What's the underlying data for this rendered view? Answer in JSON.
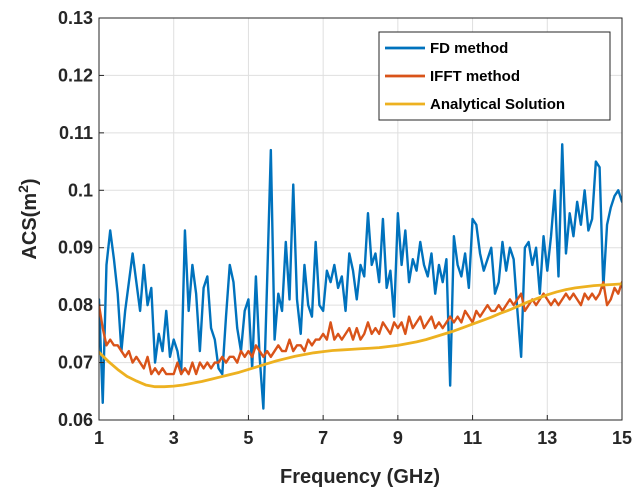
{
  "chart_data": {
    "type": "line",
    "title": "",
    "xlabel": "Frequency (GHz)",
    "ylabel_main": "ACS(m",
    "ylabel_sup": "2",
    "ylabel_close": ")",
    "xlim": [
      1,
      15
    ],
    "ylim": [
      0.06,
      0.13
    ],
    "xticks": [
      1,
      3,
      5,
      7,
      9,
      11,
      13,
      15
    ],
    "xtick_labels": [
      "1",
      "3",
      "5",
      "7",
      "9",
      "11",
      "13",
      "15"
    ],
    "yticks": [
      0.06,
      0.07,
      0.08,
      0.09,
      0.1,
      0.11,
      0.12,
      0.13
    ],
    "ytick_labels": [
      "0.06",
      "0.07",
      "0.08",
      "0.09",
      "0.1",
      "0.11",
      "0.12",
      "0.13"
    ],
    "grid": true,
    "legend_position": "top-right",
    "series": [
      {
        "name": "FD method",
        "color": "#0072BD",
        "x": [
          1.0,
          1.1,
          1.2,
          1.3,
          1.4,
          1.5,
          1.6,
          1.7,
          1.8,
          1.9,
          2.0,
          2.1,
          2.2,
          2.3,
          2.4,
          2.5,
          2.6,
          2.7,
          2.8,
          2.9,
          3.0,
          3.1,
          3.2,
          3.3,
          3.4,
          3.5,
          3.6,
          3.7,
          3.8,
          3.9,
          4.0,
          4.1,
          4.2,
          4.3,
          4.4,
          4.5,
          4.6,
          4.7,
          4.8,
          4.9,
          5.0,
          5.1,
          5.2,
          5.3,
          5.4,
          5.5,
          5.6,
          5.7,
          5.8,
          5.9,
          6.0,
          6.1,
          6.2,
          6.3,
          6.4,
          6.5,
          6.6,
          6.7,
          6.8,
          6.9,
          7.0,
          7.1,
          7.2,
          7.3,
          7.4,
          7.5,
          7.6,
          7.7,
          7.8,
          7.9,
          8.0,
          8.1,
          8.2,
          8.3,
          8.4,
          8.5,
          8.6,
          8.7,
          8.8,
          8.9,
          9.0,
          9.1,
          9.2,
          9.3,
          9.4,
          9.5,
          9.6,
          9.7,
          9.8,
          9.9,
          10.0,
          10.1,
          10.2,
          10.3,
          10.4,
          10.5,
          10.6,
          10.7,
          10.8,
          10.9,
          11.0,
          11.1,
          11.2,
          11.3,
          11.4,
          11.5,
          11.6,
          11.7,
          11.8,
          11.9,
          12.0,
          12.1,
          12.2,
          12.3,
          12.4,
          12.5,
          12.6,
          12.7,
          12.8,
          12.9,
          13.0,
          13.1,
          13.2,
          13.3,
          13.4,
          13.5,
          13.6,
          13.7,
          13.8,
          13.9,
          14.0,
          14.1,
          14.2,
          14.3,
          14.4,
          14.5,
          14.6,
          14.7,
          14.8,
          14.9,
          15.0
        ],
        "y": [
          0.081,
          0.063,
          0.087,
          0.093,
          0.088,
          0.082,
          0.072,
          0.079,
          0.084,
          0.089,
          0.084,
          0.079,
          0.087,
          0.08,
          0.083,
          0.07,
          0.075,
          0.072,
          0.079,
          0.071,
          0.074,
          0.072,
          0.068,
          0.093,
          0.079,
          0.087,
          0.082,
          0.072,
          0.083,
          0.085,
          0.076,
          0.074,
          0.069,
          0.068,
          0.078,
          0.087,
          0.084,
          0.076,
          0.072,
          0.079,
          0.081,
          0.069,
          0.085,
          0.071,
          0.062,
          0.084,
          0.107,
          0.074,
          0.082,
          0.079,
          0.091,
          0.081,
          0.101,
          0.081,
          0.075,
          0.087,
          0.08,
          0.078,
          0.091,
          0.08,
          0.079,
          0.086,
          0.084,
          0.087,
          0.083,
          0.085,
          0.079,
          0.089,
          0.086,
          0.081,
          0.087,
          0.085,
          0.096,
          0.087,
          0.089,
          0.084,
          0.095,
          0.083,
          0.086,
          0.078,
          0.096,
          0.087,
          0.093,
          0.084,
          0.088,
          0.086,
          0.091,
          0.087,
          0.085,
          0.089,
          0.082,
          0.087,
          0.084,
          0.088,
          0.066,
          0.092,
          0.087,
          0.085,
          0.089,
          0.083,
          0.095,
          0.094,
          0.089,
          0.086,
          0.088,
          0.09,
          0.082,
          0.084,
          0.091,
          0.086,
          0.09,
          0.088,
          0.079,
          0.071,
          0.09,
          0.091,
          0.087,
          0.09,
          0.082,
          0.092,
          0.086,
          0.092,
          0.1,
          0.085,
          0.108,
          0.089,
          0.096,
          0.092,
          0.098,
          0.094,
          0.1,
          0.093,
          0.095,
          0.105,
          0.104,
          0.083,
          0.094,
          0.097,
          0.099,
          0.1,
          0.098
        ]
      },
      {
        "name": "IFFT method",
        "color": "#D95319",
        "x": [
          1.0,
          1.1,
          1.2,
          1.3,
          1.4,
          1.5,
          1.6,
          1.7,
          1.8,
          1.9,
          2.0,
          2.1,
          2.2,
          2.3,
          2.4,
          2.5,
          2.6,
          2.7,
          2.8,
          2.9,
          3.0,
          3.1,
          3.2,
          3.3,
          3.4,
          3.5,
          3.6,
          3.7,
          3.8,
          3.9,
          4.0,
          4.1,
          4.2,
          4.3,
          4.4,
          4.5,
          4.6,
          4.7,
          4.8,
          4.9,
          5.0,
          5.1,
          5.2,
          5.3,
          5.4,
          5.5,
          5.6,
          5.7,
          5.8,
          5.9,
          6.0,
          6.1,
          6.2,
          6.3,
          6.4,
          6.5,
          6.6,
          6.7,
          6.8,
          6.9,
          7.0,
          7.1,
          7.2,
          7.3,
          7.4,
          7.5,
          7.6,
          7.7,
          7.8,
          7.9,
          8.0,
          8.1,
          8.2,
          8.3,
          8.4,
          8.5,
          8.6,
          8.7,
          8.8,
          8.9,
          9.0,
          9.1,
          9.2,
          9.3,
          9.4,
          9.5,
          9.6,
          9.7,
          9.8,
          9.9,
          10.0,
          10.1,
          10.2,
          10.3,
          10.4,
          10.5,
          10.6,
          10.7,
          10.8,
          10.9,
          11.0,
          11.1,
          11.2,
          11.3,
          11.4,
          11.5,
          11.6,
          11.7,
          11.8,
          11.9,
          12.0,
          12.1,
          12.2,
          12.3,
          12.4,
          12.5,
          12.6,
          12.7,
          12.8,
          12.9,
          13.0,
          13.1,
          13.2,
          13.3,
          13.4,
          13.5,
          13.6,
          13.7,
          13.8,
          13.9,
          14.0,
          14.1,
          14.2,
          14.3,
          14.4,
          14.5,
          14.6,
          14.7,
          14.8,
          14.9,
          15.0
        ],
        "y": [
          0.08,
          0.076,
          0.073,
          0.074,
          0.073,
          0.073,
          0.072,
          0.071,
          0.072,
          0.07,
          0.071,
          0.07,
          0.069,
          0.071,
          0.068,
          0.069,
          0.068,
          0.069,
          0.068,
          0.068,
          0.068,
          0.07,
          0.068,
          0.069,
          0.068,
          0.07,
          0.068,
          0.07,
          0.069,
          0.07,
          0.069,
          0.07,
          0.07,
          0.071,
          0.07,
          0.071,
          0.071,
          0.07,
          0.072,
          0.071,
          0.072,
          0.071,
          0.073,
          0.072,
          0.071,
          0.072,
          0.071,
          0.072,
          0.073,
          0.072,
          0.072,
          0.074,
          0.072,
          0.073,
          0.073,
          0.072,
          0.074,
          0.073,
          0.074,
          0.074,
          0.075,
          0.074,
          0.077,
          0.074,
          0.075,
          0.074,
          0.075,
          0.076,
          0.074,
          0.076,
          0.074,
          0.075,
          0.077,
          0.075,
          0.076,
          0.075,
          0.077,
          0.076,
          0.075,
          0.077,
          0.076,
          0.077,
          0.075,
          0.078,
          0.076,
          0.077,
          0.078,
          0.076,
          0.077,
          0.078,
          0.076,
          0.077,
          0.076,
          0.077,
          0.078,
          0.077,
          0.078,
          0.077,
          0.079,
          0.078,
          0.077,
          0.079,
          0.078,
          0.079,
          0.08,
          0.079,
          0.079,
          0.08,
          0.079,
          0.08,
          0.081,
          0.08,
          0.081,
          0.082,
          0.079,
          0.08,
          0.081,
          0.08,
          0.081,
          0.082,
          0.081,
          0.08,
          0.081,
          0.08,
          0.081,
          0.082,
          0.081,
          0.082,
          0.081,
          0.08,
          0.082,
          0.081,
          0.082,
          0.081,
          0.082,
          0.084,
          0.08,
          0.081,
          0.083,
          0.082,
          0.084
        ]
      },
      {
        "name": "Analytical Solution",
        "color": "#EDB120",
        "x": [
          1.0,
          1.25,
          1.5,
          1.75,
          2.0,
          2.25,
          2.5,
          2.75,
          3.0,
          3.25,
          3.5,
          3.75,
          4.0,
          4.25,
          4.5,
          4.75,
          5.0,
          5.25,
          5.5,
          5.75,
          6.0,
          6.25,
          6.5,
          6.75,
          7.0,
          7.25,
          7.5,
          7.75,
          8.0,
          8.25,
          8.5,
          8.75,
          9.0,
          9.25,
          9.5,
          9.75,
          10.0,
          10.25,
          10.5,
          10.75,
          11.0,
          11.25,
          11.5,
          11.75,
          12.0,
          12.25,
          12.5,
          12.75,
          13.0,
          13.25,
          13.5,
          13.75,
          14.0,
          14.25,
          14.5,
          14.75,
          15.0
        ],
        "y": [
          0.0718,
          0.0702,
          0.0688,
          0.0676,
          0.0668,
          0.0661,
          0.0658,
          0.0658,
          0.0659,
          0.0661,
          0.0664,
          0.0667,
          0.0671,
          0.0675,
          0.0679,
          0.0683,
          0.0688,
          0.0693,
          0.0698,
          0.0703,
          0.0707,
          0.0711,
          0.0714,
          0.0717,
          0.0719,
          0.0721,
          0.0722,
          0.0723,
          0.0724,
          0.0725,
          0.0726,
          0.0728,
          0.073,
          0.0733,
          0.0736,
          0.074,
          0.0745,
          0.075,
          0.0755,
          0.0761,
          0.0767,
          0.0773,
          0.0779,
          0.0786,
          0.0792,
          0.0799,
          0.0806,
          0.0812,
          0.0818,
          0.0823,
          0.0827,
          0.083,
          0.0832,
          0.0834,
          0.0835,
          0.0836,
          0.0837
        ]
      }
    ]
  }
}
